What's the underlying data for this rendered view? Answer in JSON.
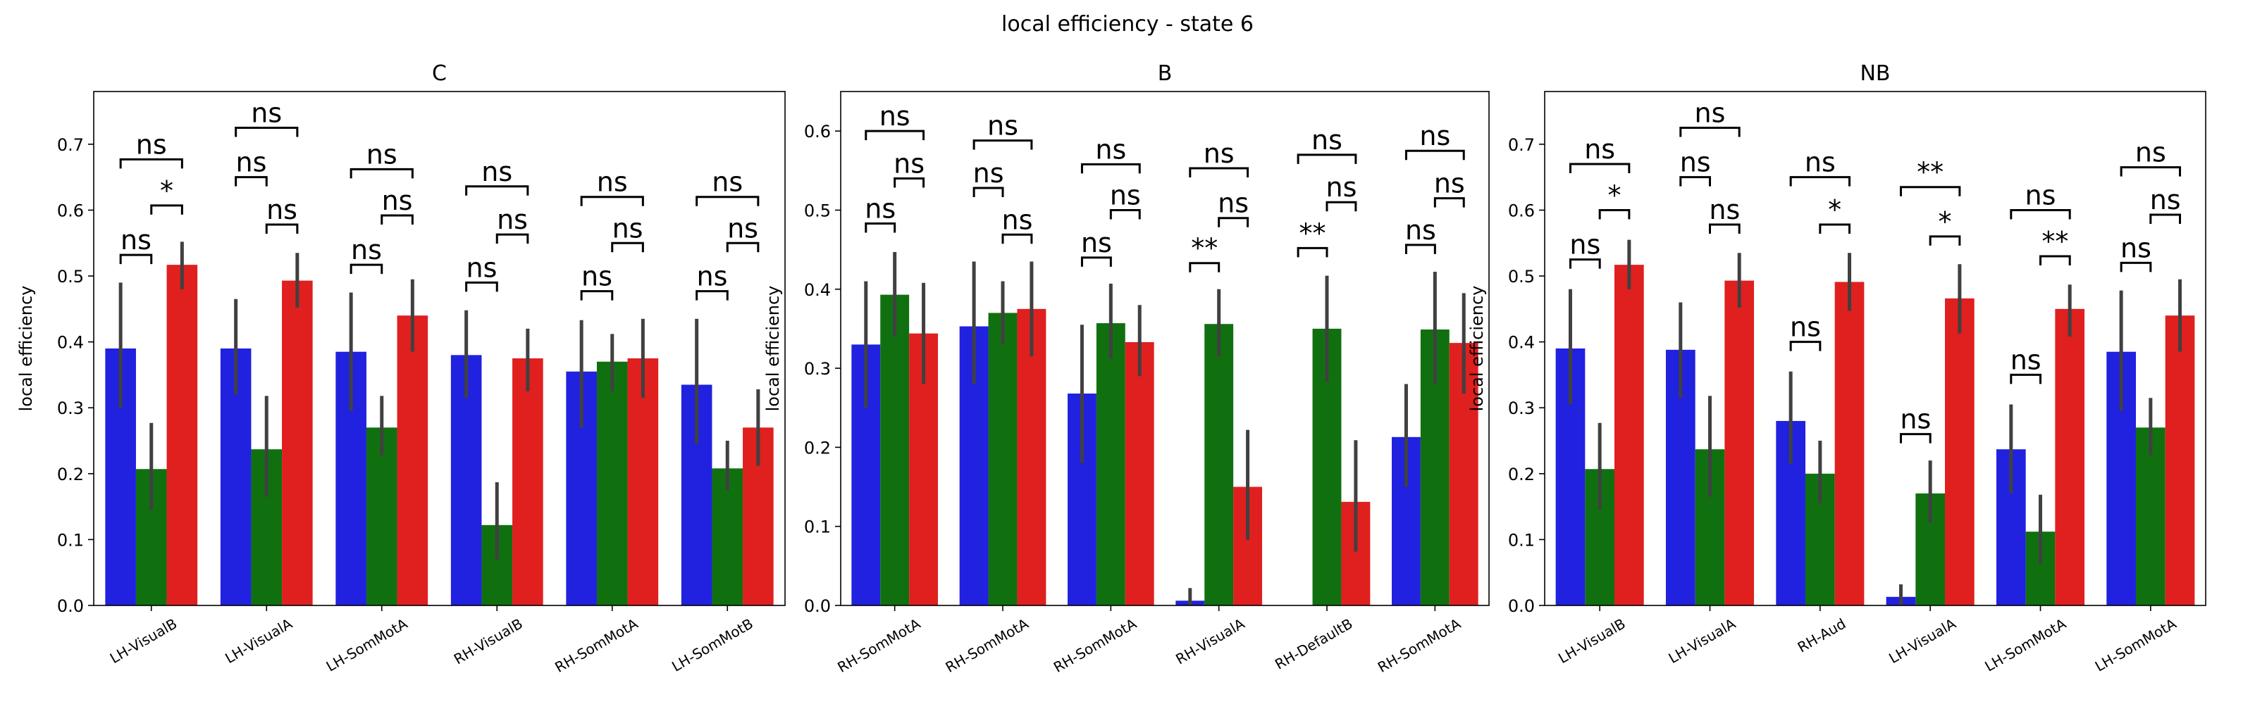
{
  "figure_title": "local efficiency - state 6",
  "colors": {
    "series1": "#2121e0",
    "series2": "#107010",
    "series3": "#e01f1f",
    "errbar": "#404040"
  },
  "chart_data": [
    {
      "type": "bar",
      "title": "C",
      "ylabel": "local efficiency",
      "ylim": [
        0,
        0.78
      ],
      "yticks": [
        "0.0",
        "0.1",
        "0.2",
        "0.3",
        "0.4",
        "0.5",
        "0.6",
        "0.7"
      ],
      "categories": [
        "LH-VisualB",
        "LH-VisualA",
        "LH-SomMotA",
        "RH-VisualB",
        "RH-SomMotA",
        "LH-SomMotB"
      ],
      "series": [
        {
          "values": [
            0.39,
            0.39,
            0.385,
            0.38,
            0.355,
            0.335
          ],
          "err_low": [
            0.3,
            0.32,
            0.295,
            0.315,
            0.27,
            0.245
          ],
          "err_high": [
            0.49,
            0.465,
            0.475,
            0.448,
            0.433,
            0.435
          ]
        },
        {
          "values": [
            0.207,
            0.237,
            0.27,
            0.122,
            0.37,
            0.208
          ],
          "err_low": [
            0.145,
            0.165,
            0.228,
            0.07,
            0.325,
            0.175
          ],
          "err_high": [
            0.277,
            0.318,
            0.318,
            0.187,
            0.412,
            0.25
          ]
        },
        {
          "values": [
            0.517,
            0.493,
            0.44,
            0.375,
            0.375,
            0.27
          ],
          "err_low": [
            0.48,
            0.452,
            0.385,
            0.325,
            0.315,
            0.212
          ],
          "err_high": [
            0.552,
            0.535,
            0.495,
            0.42,
            0.435,
            0.328
          ]
        }
      ],
      "annotations": [
        {
          "pair": [
            0,
            1
          ],
          "cat": 0,
          "label": "ns",
          "y": 0.532
        },
        {
          "pair": [
            1,
            2
          ],
          "cat": 0,
          "label": "*",
          "y": 0.607
        },
        {
          "pair": [
            0,
            2
          ],
          "cat": 0,
          "label": "ns",
          "y": 0.677
        },
        {
          "pair": [
            0,
            1
          ],
          "cat": 1,
          "label": "ns",
          "y": 0.65
        },
        {
          "pair": [
            1,
            2
          ],
          "cat": 1,
          "label": "ns",
          "y": 0.578
        },
        {
          "pair": [
            0,
            2
          ],
          "cat": 1,
          "label": "ns",
          "y": 0.725
        },
        {
          "pair": [
            0,
            1
          ],
          "cat": 2,
          "label": "ns",
          "y": 0.517
        },
        {
          "pair": [
            1,
            2
          ],
          "cat": 2,
          "label": "ns",
          "y": 0.592
        },
        {
          "pair": [
            0,
            2
          ],
          "cat": 2,
          "label": "ns",
          "y": 0.662
        },
        {
          "pair": [
            0,
            1
          ],
          "cat": 3,
          "label": "ns",
          "y": 0.49
        },
        {
          "pair": [
            1,
            2
          ],
          "cat": 3,
          "label": "ns",
          "y": 0.563
        },
        {
          "pair": [
            0,
            2
          ],
          "cat": 3,
          "label": "ns",
          "y": 0.636
        },
        {
          "pair": [
            0,
            1
          ],
          "cat": 4,
          "label": "ns",
          "y": 0.477
        },
        {
          "pair": [
            1,
            2
          ],
          "cat": 4,
          "label": "ns",
          "y": 0.55
        },
        {
          "pair": [
            0,
            2
          ],
          "cat": 4,
          "label": "ns",
          "y": 0.62
        },
        {
          "pair": [
            0,
            1
          ],
          "cat": 5,
          "label": "ns",
          "y": 0.477
        },
        {
          "pair": [
            1,
            2
          ],
          "cat": 5,
          "label": "ns",
          "y": 0.55
        },
        {
          "pair": [
            0,
            2
          ],
          "cat": 5,
          "label": "ns",
          "y": 0.62
        }
      ]
    },
    {
      "type": "bar",
      "title": "B",
      "ylabel": "local efficiency",
      "ylim": [
        0,
        0.65
      ],
      "yticks": [
        "0.0",
        "0.1",
        "0.2",
        "0.3",
        "0.4",
        "0.5",
        "0.6"
      ],
      "categories": [
        "RH-SomMotA",
        "RH-SomMotA",
        "RH-SomMotA",
        "RH-VisualA",
        "RH-DefaultB",
        "RH-SomMotA"
      ],
      "series": [
        {
          "values": [
            0.33,
            0.353,
            0.268,
            0.006,
            0.0,
            0.213
          ],
          "err_low": [
            0.25,
            0.28,
            0.18,
            0.0,
            0.0,
            0.15
          ],
          "err_high": [
            0.41,
            0.435,
            0.355,
            0.022,
            0.0,
            0.28
          ]
        },
        {
          "values": [
            0.393,
            0.37,
            0.357,
            0.356,
            0.35,
            0.349
          ],
          "err_low": [
            0.34,
            0.33,
            0.312,
            0.315,
            0.283,
            0.28
          ],
          "err_high": [
            0.447,
            0.41,
            0.407,
            0.4,
            0.417,
            0.422
          ]
        },
        {
          "values": [
            0.344,
            0.375,
            0.333,
            0.15,
            0.131,
            0.332
          ],
          "err_low": [
            0.28,
            0.315,
            0.29,
            0.083,
            0.068,
            0.268
          ],
          "err_high": [
            0.408,
            0.435,
            0.38,
            0.222,
            0.209,
            0.395
          ]
        }
      ],
      "annotations": [
        {
          "pair": [
            0,
            1
          ],
          "cat": 0,
          "label": "ns",
          "y": 0.483
        },
        {
          "pair": [
            1,
            2
          ],
          "cat": 0,
          "label": "ns",
          "y": 0.54
        },
        {
          "pair": [
            0,
            2
          ],
          "cat": 0,
          "label": "ns",
          "y": 0.6
        },
        {
          "pair": [
            0,
            1
          ],
          "cat": 1,
          "label": "ns",
          "y": 0.528
        },
        {
          "pair": [
            1,
            2
          ],
          "cat": 1,
          "label": "ns",
          "y": 0.469
        },
        {
          "pair": [
            0,
            2
          ],
          "cat": 1,
          "label": "ns",
          "y": 0.588
        },
        {
          "pair": [
            0,
            1
          ],
          "cat": 2,
          "label": "ns",
          "y": 0.44
        },
        {
          "pair": [
            1,
            2
          ],
          "cat": 2,
          "label": "ns",
          "y": 0.5
        },
        {
          "pair": [
            0,
            2
          ],
          "cat": 2,
          "label": "ns",
          "y": 0.558
        },
        {
          "pair": [
            0,
            1
          ],
          "cat": 3,
          "label": "**",
          "y": 0.433
        },
        {
          "pair": [
            1,
            2
          ],
          "cat": 3,
          "label": "ns",
          "y": 0.49
        },
        {
          "pair": [
            0,
            2
          ],
          "cat": 3,
          "label": "ns",
          "y": 0.553
        },
        {
          "pair": [
            0,
            1
          ],
          "cat": 4,
          "label": "**",
          "y": 0.452
        },
        {
          "pair": [
            1,
            2
          ],
          "cat": 4,
          "label": "ns",
          "y": 0.51
        },
        {
          "pair": [
            0,
            2
          ],
          "cat": 4,
          "label": "ns",
          "y": 0.57
        },
        {
          "pair": [
            0,
            1
          ],
          "cat": 5,
          "label": "ns",
          "y": 0.456
        },
        {
          "pair": [
            1,
            2
          ],
          "cat": 5,
          "label": "ns",
          "y": 0.515
        },
        {
          "pair": [
            0,
            2
          ],
          "cat": 5,
          "label": "ns",
          "y": 0.575
        }
      ]
    },
    {
      "type": "bar",
      "title": "NB",
      "ylabel": "local efficiency",
      "ylim": [
        0,
        0.78
      ],
      "yticks": [
        "0.0",
        "0.1",
        "0.2",
        "0.3",
        "0.4",
        "0.5",
        "0.6",
        "0.7"
      ],
      "categories": [
        "LH-VisualB",
        "LH-VisualA",
        "RH-Aud",
        "LH-VisualA",
        "LH-SomMotA",
        "LH-SomMotA"
      ],
      "series": [
        {
          "values": [
            0.39,
            0.388,
            0.28,
            0.013,
            0.237,
            0.385
          ],
          "err_low": [
            0.305,
            0.315,
            0.215,
            0.0,
            0.17,
            0.295
          ],
          "err_high": [
            0.48,
            0.46,
            0.355,
            0.032,
            0.305,
            0.478
          ]
        },
        {
          "values": [
            0.207,
            0.237,
            0.2,
            0.17,
            0.112,
            0.27
          ],
          "err_low": [
            0.145,
            0.165,
            0.155,
            0.125,
            0.063,
            0.228
          ],
          "err_high": [
            0.277,
            0.318,
            0.25,
            0.22,
            0.168,
            0.315
          ]
        },
        {
          "values": [
            0.517,
            0.493,
            0.491,
            0.466,
            0.45,
            0.44
          ],
          "err_low": [
            0.48,
            0.452,
            0.447,
            0.413,
            0.408,
            0.385
          ],
          "err_high": [
            0.555,
            0.535,
            0.535,
            0.518,
            0.487,
            0.495
          ]
        }
      ],
      "annotations": [
        {
          "pair": [
            0,
            1
          ],
          "cat": 0,
          "label": "ns",
          "y": 0.525
        },
        {
          "pair": [
            1,
            2
          ],
          "cat": 0,
          "label": "*",
          "y": 0.6
        },
        {
          "pair": [
            0,
            2
          ],
          "cat": 0,
          "label": "ns",
          "y": 0.67
        },
        {
          "pair": [
            0,
            1
          ],
          "cat": 1,
          "label": "ns",
          "y": 0.65
        },
        {
          "pair": [
            1,
            2
          ],
          "cat": 1,
          "label": "ns",
          "y": 0.578
        },
        {
          "pair": [
            0,
            2
          ],
          "cat": 1,
          "label": "ns",
          "y": 0.725
        },
        {
          "pair": [
            0,
            1
          ],
          "cat": 2,
          "label": "ns",
          "y": 0.4
        },
        {
          "pair": [
            1,
            2
          ],
          "cat": 2,
          "label": "*",
          "y": 0.578
        },
        {
          "pair": [
            0,
            2
          ],
          "cat": 2,
          "label": "ns",
          "y": 0.65
        },
        {
          "pair": [
            0,
            1
          ],
          "cat": 3,
          "label": "ns",
          "y": 0.26
        },
        {
          "pair": [
            1,
            2
          ],
          "cat": 3,
          "label": "*",
          "y": 0.56
        },
        {
          "pair": [
            0,
            2
          ],
          "cat": 3,
          "label": "**",
          "y": 0.635
        },
        {
          "pair": [
            0,
            1
          ],
          "cat": 4,
          "label": "ns",
          "y": 0.35
        },
        {
          "pair": [
            1,
            2
          ],
          "cat": 4,
          "label": "**",
          "y": 0.53
        },
        {
          "pair": [
            0,
            2
          ],
          "cat": 4,
          "label": "ns",
          "y": 0.6
        },
        {
          "pair": [
            0,
            1
          ],
          "cat": 5,
          "label": "ns",
          "y": 0.52
        },
        {
          "pair": [
            1,
            2
          ],
          "cat": 5,
          "label": "ns",
          "y": 0.593
        },
        {
          "pair": [
            0,
            2
          ],
          "cat": 5,
          "label": "ns",
          "y": 0.665
        }
      ]
    }
  ]
}
